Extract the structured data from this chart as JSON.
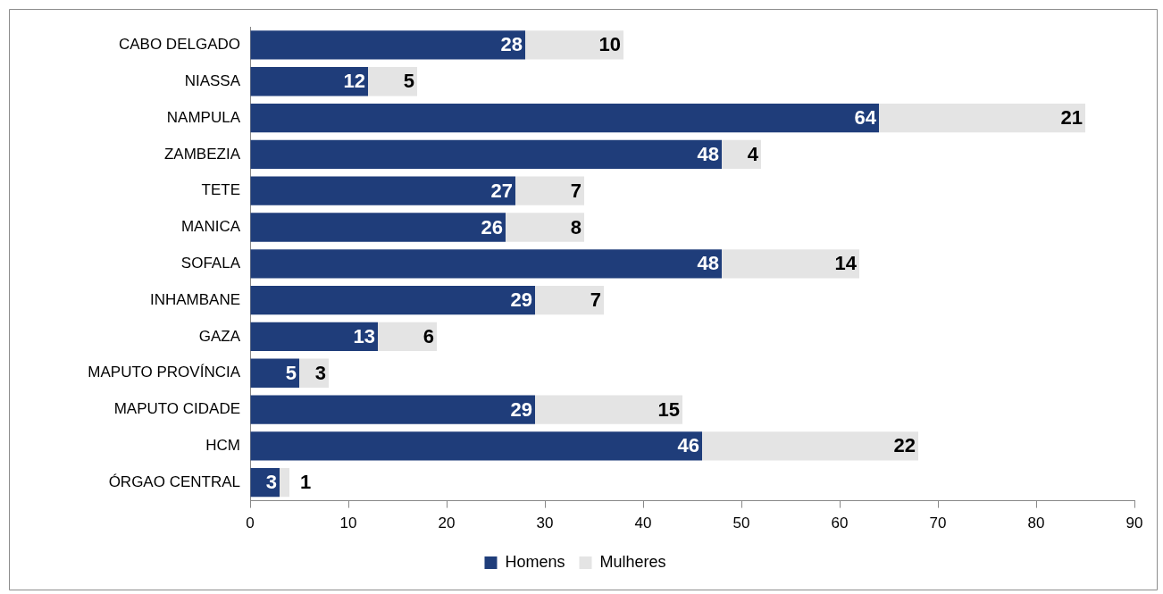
{
  "chart_data": {
    "type": "bar",
    "orientation": "horizontal",
    "stacked": true,
    "categories": [
      "CABO DELGADO",
      "NIASSA",
      "NAMPULA",
      "ZAMBEZIA",
      "TETE",
      "MANICA",
      "SOFALA",
      "INHAMBANE",
      "GAZA",
      "MAPUTO PROVÍNCIA",
      "MAPUTO CIDADE",
      "HCM",
      "ÓRGAO CENTRAL"
    ],
    "series": [
      {
        "name": "Homens",
        "color": "#1f3d7a",
        "values": [
          28,
          12,
          64,
          48,
          27,
          26,
          48,
          29,
          13,
          5,
          29,
          46,
          3
        ]
      },
      {
        "name": "Mulheres",
        "color": "#e4e4e4",
        "values": [
          10,
          5,
          21,
          4,
          7,
          8,
          14,
          7,
          6,
          3,
          15,
          22,
          1
        ]
      }
    ],
    "xlim": [
      0,
      90
    ],
    "xticks": [
      0,
      10,
      20,
      30,
      40,
      50,
      60,
      70,
      80,
      90
    ],
    "grid": false,
    "legend": "bottom",
    "data_labels": true
  }
}
